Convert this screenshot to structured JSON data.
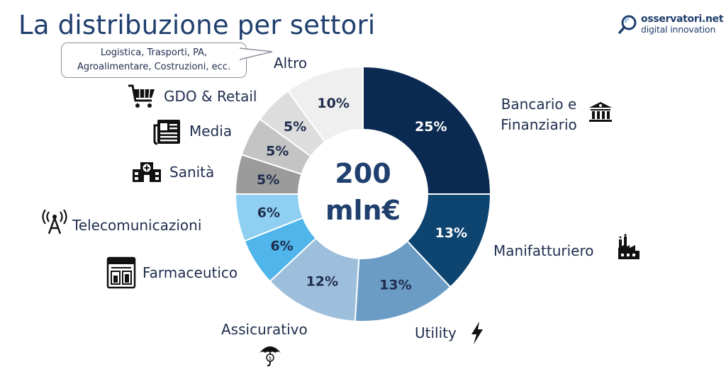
{
  "page": {
    "title": "La distribuzione per settori",
    "logo_line1": "osservatori.net",
    "logo_line2": "digital innovation",
    "callout_line1": "Logistica, Trasporti, PA,",
    "callout_line2": "Agroalimentare, Costruzioni, ecc."
  },
  "chart_data": {
    "type": "pie",
    "donut": true,
    "center_label_line1": "200",
    "center_label_line2": "mln€",
    "slices": [
      {
        "label": "Bancario e Finanziario",
        "value": 25,
        "value_label": "25%",
        "color": "#0b2a52",
        "text_color": "#ffffff",
        "icon": "bank-icon"
      },
      {
        "label": "Manifatturiero",
        "value": 13,
        "value_label": "13%",
        "color": "#0e4470",
        "text_color": "#ffffff",
        "icon": "factory-icon"
      },
      {
        "label": "Utility",
        "value": 13,
        "value_label": "13%",
        "color": "#6a9cc6",
        "text_color": "#1f2d4d",
        "icon": "lightning-icon"
      },
      {
        "label": "Assicurativo",
        "value": 12,
        "value_label": "12%",
        "color": "#9ebfdc",
        "text_color": "#1f2d4d",
        "icon": "umbrella-icon"
      },
      {
        "label": "Farmaceutico",
        "value": 6,
        "value_label": "6%",
        "color": "#4fb5ea",
        "text_color": "#1f2d4d",
        "icon": "pharmacy-icon"
      },
      {
        "label": "Telecomunicazioni",
        "value": 6,
        "value_label": "6%",
        "color": "#8fd0f2",
        "text_color": "#1f2d4d",
        "icon": "antenna-icon"
      },
      {
        "label": "Sanità",
        "value": 5,
        "value_label": "5%",
        "color": "#9b9b9b",
        "text_color": "#1f2d4d",
        "icon": "hospital-icon"
      },
      {
        "label": "Media",
        "value": 5,
        "value_label": "5%",
        "color": "#c4c4c4",
        "text_color": "#1f2d4d",
        "icon": "newspaper-icon"
      },
      {
        "label": "GDO & Retail",
        "value": 5,
        "value_label": "5%",
        "color": "#dddddd",
        "text_color": "#1f2d4d",
        "icon": "cart-icon"
      },
      {
        "label": "Altro",
        "value": 10,
        "value_label": "10%",
        "color": "#efefef",
        "text_color": "#1f2d4d",
        "icon": ""
      }
    ]
  }
}
